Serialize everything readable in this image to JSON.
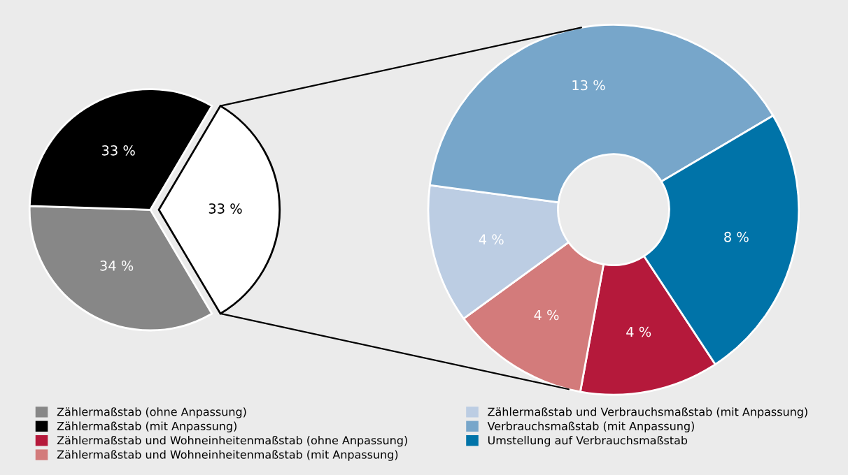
{
  "chart_data": [
    {
      "type": "pie",
      "categories": [
        "Zählermaßstab (ohne Anpassung)",
        "Zählermaßstab (mit Anpassung)",
        null
      ],
      "values": [
        34,
        33,
        33
      ],
      "colors": [
        "#878787",
        "#000000",
        "#ffffff"
      ],
      "value_labels": [
        "34 %",
        "33 %",
        "33 %"
      ],
      "legend": "bottom"
    },
    {
      "type": "donut",
      "categories": [
        "Zählermaßstab und Wohneinheitenmaßstab (ohne Anpassung)",
        "Zählermaßstab und Wohneinheitenmaßstab (mit Anpassung)",
        "Zählermaßstab und Verbrauchsmaßstab (mit Anpassung)",
        "Verbrauchsmaßstab (mit Anpassung)",
        "Umstellung auf Verbrauchsmaßstab"
      ],
      "values": [
        4,
        4,
        4,
        13,
        8
      ],
      "colors": [
        "#b5193b",
        "#d37b7b",
        "#bccde3",
        "#77a6ca",
        "#0073a8"
      ],
      "value_labels": [
        "4 %",
        "4 %",
        "4 %",
        "13 %",
        "8 %"
      ],
      "legend": "bottom"
    }
  ]
}
